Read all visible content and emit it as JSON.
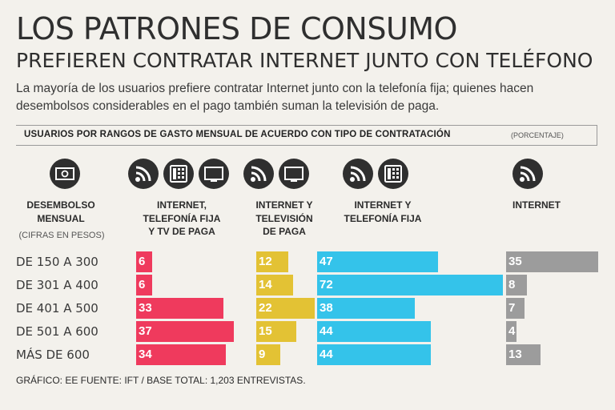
{
  "header": {
    "title": "LOS PATRONES DE CONSUMO",
    "subtitle": "PREFIEREN CONTRATAR INTERNET JUNTO CON TELÉFONO",
    "intro": "La mayoría de los usuarios prefiere contratar Internet junto con la telefonía fija; quienes hacen desembolsos considerables en el pago también suman la televisión de paga."
  },
  "section": {
    "label": "USUARIOS POR RANGOS DE GASTO MENSUAL DE ACUERDO CON TIPO DE CONTRATACIÓN",
    "note": "(PORCENTAJE)"
  },
  "row_header": {
    "title_line1": "DESEMBOLSO",
    "title_line2": "MENSUAL",
    "subtitle": "(CIFRAS EN PESOS)"
  },
  "footer": "GRÁFICO: EE  FUENTE: IFT / BASE TOTAL: 1,203 ENTREVISTAS.",
  "colors": {
    "internet_tel_tv": "#ef3a5d",
    "internet_tv": "#e3c234",
    "internet_tel": "#34c3ea",
    "internet": "#9c9c9c"
  },
  "chart_data": {
    "type": "bar",
    "orientation": "horizontal",
    "title": "USUARIOS POR RANGOS DE GASTO MENSUAL DE ACUERDO CON TIPO DE CONTRATACIÓN",
    "unit": "(PORCENTAJE)",
    "categories": [
      "DE 150 A 300",
      "DE 301 A 400",
      "DE 401 A 500",
      "DE 501 A 600",
      "MÁS DE 600"
    ],
    "series": [
      {
        "name": "INTERNET, TELEFONÍA FIJA Y TV DE PAGA",
        "name_lines": [
          "INTERNET,",
          "TELEFONÍA FIJA",
          "Y TV DE PAGA"
        ],
        "values": [
          6,
          6,
          33,
          37,
          34
        ],
        "icons": [
          "wifi-icon",
          "phone-icon",
          "tv-icon"
        ]
      },
      {
        "name": "INTERNET Y TELEVISIÓN DE PAGA",
        "name_lines": [
          "INTERNET Y",
          "TELEVISIÓN",
          "DE PAGA"
        ],
        "values": [
          12,
          14,
          22,
          15,
          9
        ],
        "icons": [
          "wifi-icon",
          "tv-icon"
        ]
      },
      {
        "name": "INTERNET Y TELEFONÍA FIJA",
        "name_lines": [
          "INTERNET Y",
          "TELEFONÍA FIJA"
        ],
        "values": [
          47,
          72,
          38,
          44,
          44
        ],
        "icons": [
          "wifi-icon",
          "phone-icon"
        ]
      },
      {
        "name": "INTERNET",
        "name_lines": [
          "INTERNET"
        ],
        "values": [
          35,
          8,
          7,
          4,
          13
        ],
        "icons": [
          "wifi-icon"
        ]
      }
    ]
  }
}
